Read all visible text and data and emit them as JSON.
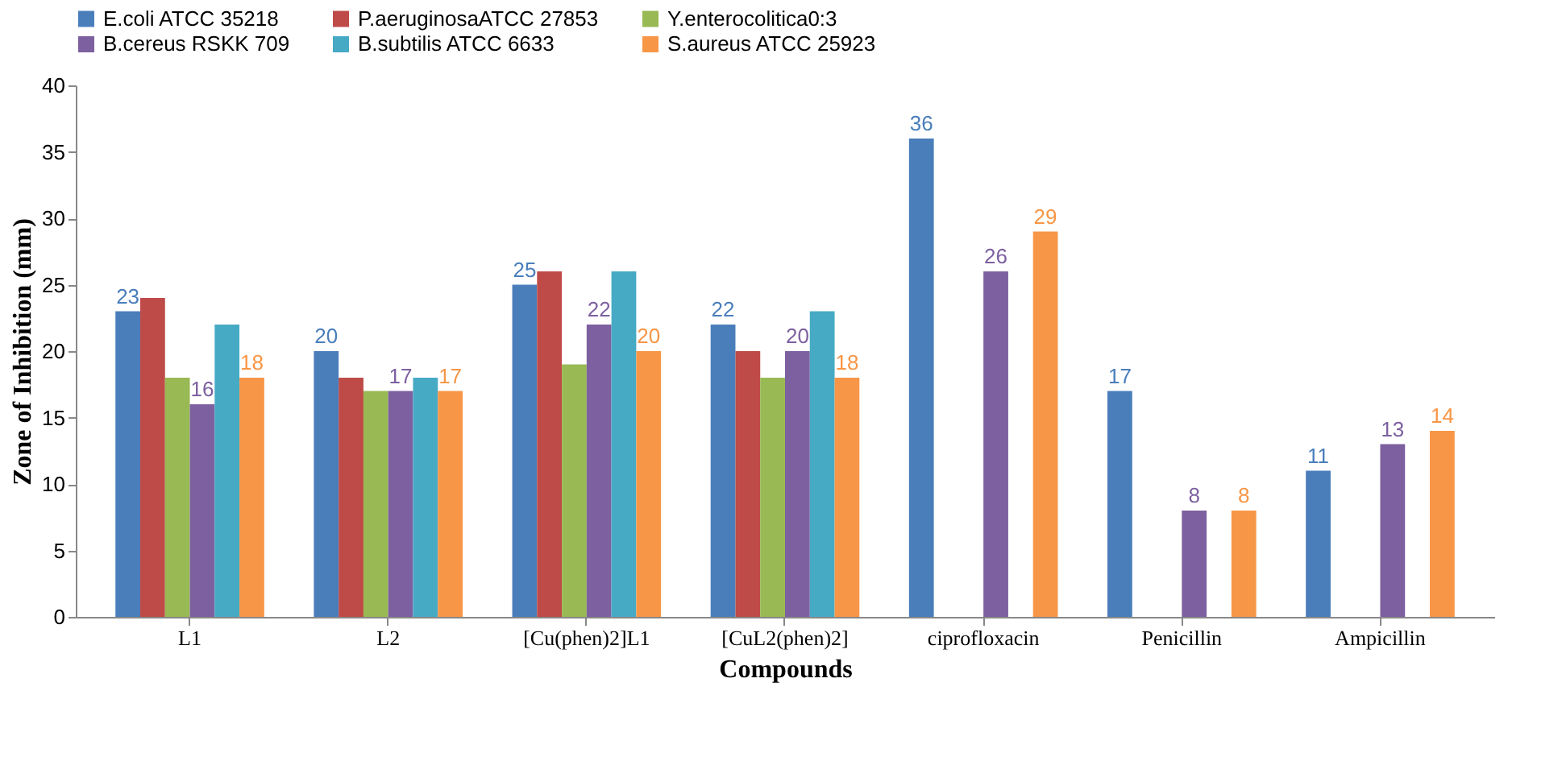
{
  "chart_data": {
    "type": "bar",
    "xlabel": "Compounds",
    "ylabel": "Zone of Inhibition (mm)",
    "categories": [
      "L1",
      "L2",
      "[Cu(phen)2]L1",
      "[CuL2(phen)2]",
      "ciprofloxacin",
      "Penicillin",
      "Ampicillin"
    ],
    "series": [
      {
        "name": "E.coli ATCC 35218",
        "color": "#4a7ebb",
        "values": [
          23,
          20,
          25,
          22,
          36,
          17,
          11
        ],
        "value_labels": [
          "23",
          "20",
          "25",
          "22",
          "36",
          "17",
          "11"
        ]
      },
      {
        "name": "P.aeruginosaATCC 27853",
        "color": "#be4b48",
        "values": [
          24,
          18,
          26,
          20,
          0,
          0,
          0
        ]
      },
      {
        "name": "Y.enterocolitica0:3",
        "color": "#98b954",
        "values": [
          18,
          17,
          19,
          18,
          0,
          0,
          0
        ]
      },
      {
        "name": "B.cereus RSKK 709",
        "color": "#7d60a0",
        "values": [
          16,
          17,
          22,
          20,
          26,
          8,
          13
        ],
        "value_labels": [
          "16",
          "17",
          "22",
          "20",
          "26",
          "8",
          "13"
        ]
      },
      {
        "name": "B.subtilis ATCC 6633",
        "color": "#46aac5",
        "values": [
          22,
          18,
          26,
          23,
          0,
          0,
          0
        ]
      },
      {
        "name": "S.aureus ATCC 25923",
        "color": "#f79646",
        "values": [
          18,
          17,
          20,
          18,
          29,
          8,
          14
        ],
        "value_labels": [
          "18",
          "17",
          "20",
          "18",
          "29",
          "8",
          "14"
        ]
      }
    ],
    "ylim": [
      0,
      40
    ],
    "yticks": [
      0,
      5,
      10,
      15,
      20,
      25,
      30,
      35,
      40
    ],
    "grid": false,
    "legend": "top"
  }
}
